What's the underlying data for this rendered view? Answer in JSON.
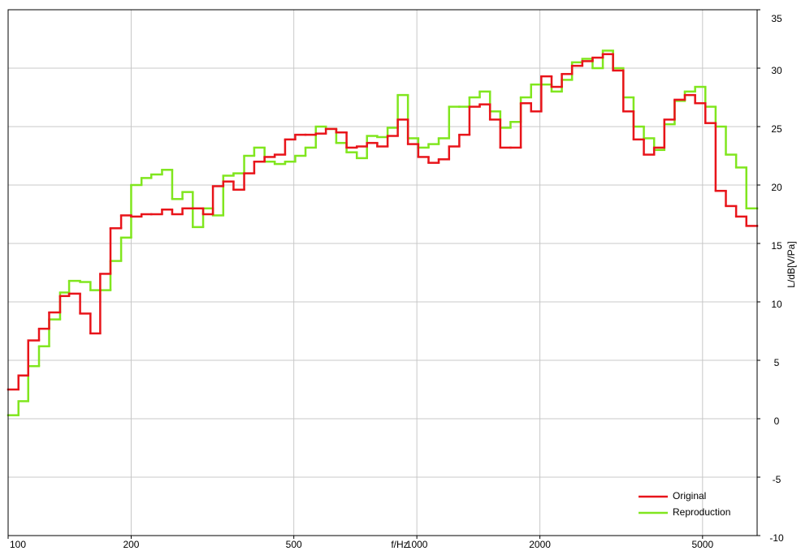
{
  "chart_data": {
    "type": "step",
    "x_label": "f/Hz",
    "y_label": "L/dB[V/Pa]",
    "x_scale": "log",
    "xlim": [
      100,
      6800
    ],
    "xticks": [
      100,
      200,
      500,
      1000,
      2000,
      5000
    ],
    "ylim": [
      -10,
      35
    ],
    "yticks": [
      -10,
      -5,
      0,
      5,
      10,
      15,
      20,
      25,
      30,
      35
    ],
    "y_axis_side": "right",
    "grid": true,
    "legend": "lower right",
    "x": [
      100,
      106,
      112,
      119,
      126,
      134,
      141,
      150,
      159,
      168,
      178,
      189,
      200,
      212,
      224,
      238,
      252,
      267,
      283,
      300,
      317,
      336,
      356,
      378,
      400,
      424,
      449,
      476,
      504,
      534,
      566,
      599,
      635,
      673,
      713,
      755,
      800,
      848,
      898,
      951,
      1008,
      1068,
      1131,
      1199,
      1270,
      1345,
      1425,
      1510,
      1600,
      1695,
      1796,
      1903,
      2016,
      2136,
      2263,
      2397,
      2540,
      2691,
      2851,
      3020,
      3200,
      3390,
      3592,
      3806,
      4032,
      4272,
      4525,
      4795,
      5080,
      5382,
      5702,
      6041,
      6400
    ],
    "series": [
      {
        "name": "Original",
        "color": "#e8141a",
        "values": [
          2.5,
          3.7,
          6.7,
          7.7,
          9.1,
          10.5,
          10.7,
          9.0,
          7.3,
          12.4,
          16.3,
          17.4,
          17.3,
          17.5,
          17.5,
          17.9,
          17.5,
          18.0,
          18.0,
          17.5,
          19.9,
          20.3,
          19.6,
          21.0,
          22.0,
          22.4,
          22.6,
          23.9,
          24.3,
          24.3,
          24.4,
          24.8,
          24.5,
          23.2,
          23.3,
          23.6,
          23.3,
          24.2,
          25.6,
          23.5,
          22.4,
          21.9,
          22.2,
          23.3,
          24.3,
          26.7,
          26.9,
          25.6,
          23.2,
          23.2,
          27.0,
          26.3,
          29.3,
          28.4,
          29.5,
          30.2,
          30.6,
          30.9,
          31.2,
          29.8,
          26.3,
          23.9,
          22.6,
          23.2,
          25.6,
          27.3,
          27.7,
          27.0,
          25.3,
          19.5,
          18.2,
          17.3,
          16.5
        ]
      },
      {
        "name": "Reproduction",
        "color": "#80e61e",
        "values": [
          0.3,
          1.5,
          4.5,
          6.2,
          8.5,
          10.8,
          11.8,
          11.7,
          11.0,
          11.0,
          13.5,
          15.5,
          20.0,
          20.6,
          20.9,
          21.3,
          18.8,
          19.4,
          16.4,
          18.0,
          17.4,
          20.8,
          21.0,
          22.5,
          23.2,
          22.0,
          21.8,
          22.0,
          22.5,
          23.2,
          25.0,
          24.8,
          23.6,
          22.8,
          22.3,
          24.2,
          24.1,
          24.9,
          27.7,
          24.0,
          23.2,
          23.5,
          24.0,
          26.7,
          26.7,
          27.5,
          28.0,
          26.3,
          24.9,
          25.4,
          27.5,
          28.6,
          28.6,
          28.0,
          29.0,
          30.5,
          30.8,
          30.0,
          31.5,
          30.0,
          27.5,
          25.0,
          24.0,
          23.0,
          25.2,
          27.2,
          28.0,
          28.4,
          26.7,
          25.0,
          22.6,
          21.5,
          18.0
        ]
      }
    ]
  }
}
